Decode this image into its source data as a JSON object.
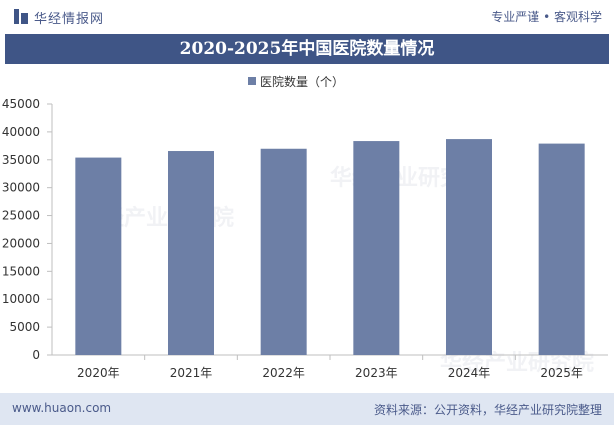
{
  "header": {
    "logo_text": "华经情报网",
    "slogan": "专业严谨 • 客观科学"
  },
  "footer": {
    "url": "www.huaon.com",
    "source": "资料来源：公开资料，华经产业研究院整理"
  },
  "colors": {
    "title_bar": "#3f5586",
    "bar": "#6d7fa6",
    "footer_bg": "#dfe6f2",
    "brand_text": "#4a5a8a"
  },
  "watermark_text": "华经产业研究院",
  "chart_data": {
    "type": "bar",
    "title": "2020-2025年中国医院数量情况",
    "xlabel": "",
    "ylabel": "",
    "categories": [
      "2020年",
      "2021年",
      "2022年",
      "2023年",
      "2024年",
      "2025年"
    ],
    "series": [
      {
        "name": "医院数量（个）",
        "values": [
          35394,
          36570,
          36976,
          38355,
          38710,
          37900
        ]
      }
    ],
    "ylim": [
      0,
      45000
    ],
    "yticks": [
      0,
      5000,
      10000,
      15000,
      20000,
      25000,
      30000,
      35000,
      40000,
      45000
    ],
    "legend_position": "top",
    "grid": false
  }
}
